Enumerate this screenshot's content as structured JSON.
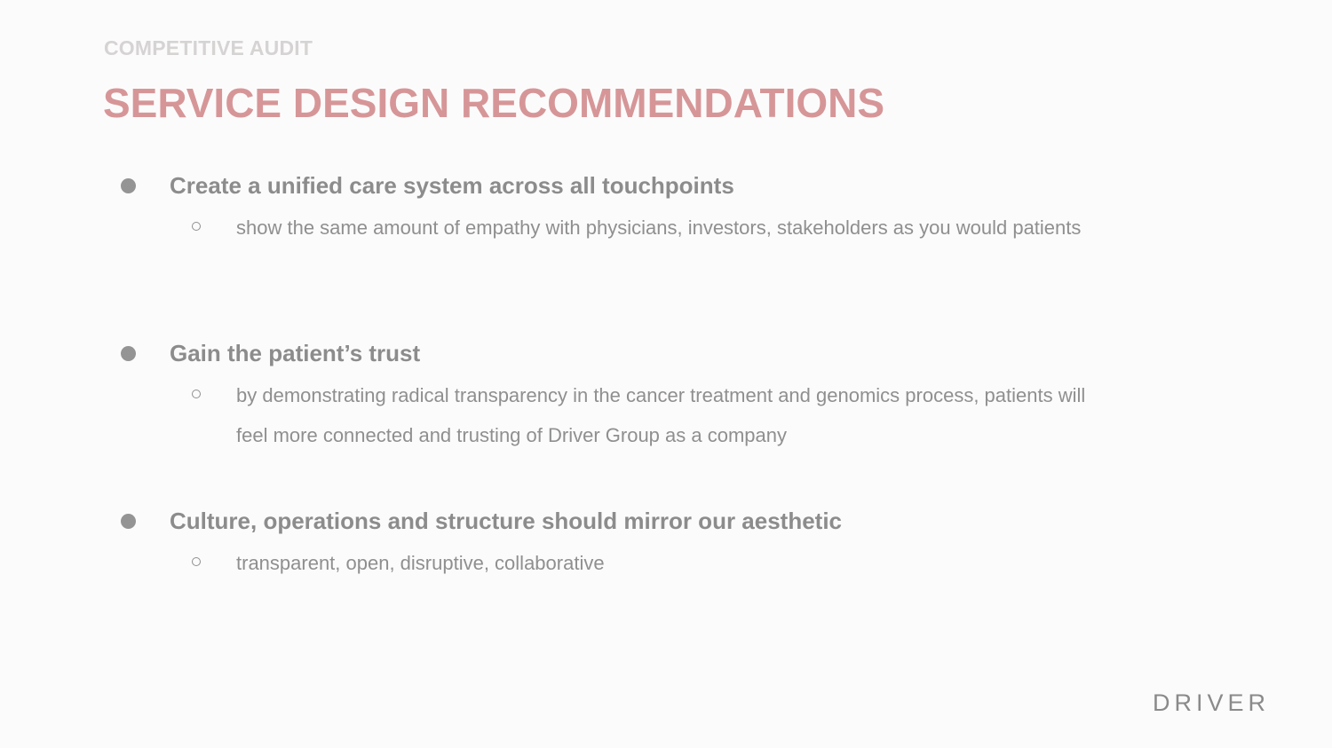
{
  "slide": {
    "eyebrow": "COMPETITIVE AUDIT",
    "title": "SERVICE DESIGN RECOMMENDATIONS",
    "items": [
      {
        "heading": "Create a unified care system across all touchpoints",
        "sub": "show the same amount of empathy with physicians, investors, stakeholders as you would patients"
      },
      {
        "heading": "Gain the patient’s trust",
        "sub": "by demonstrating radical transparency in the cancer treatment and genomics process, patients will feel more connected and trusting of Driver Group as a company"
      },
      {
        "heading": "Culture, operations and structure should mirror our aesthetic",
        "sub": "transparent, open, disruptive, collaborative"
      }
    ],
    "logo": "DRIVER"
  },
  "colors": {
    "title": "#d69698",
    "eyebrow": "#d6d3d3",
    "text": "#8f8f8f",
    "background": "#fcfbfb"
  }
}
